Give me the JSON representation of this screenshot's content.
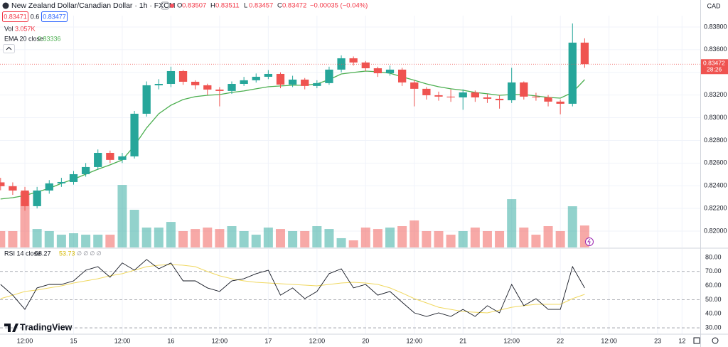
{
  "header": {
    "symbol": "New Zealand Dollar/Canadian Dollar · 1h · FXCM",
    "ohlc": [
      {
        "label": "O",
        "value": "0.83507"
      },
      {
        "label": "H",
        "value": "0.83511"
      },
      {
        "label": "L",
        "value": "0.83457"
      },
      {
        "label": "C",
        "value": "0.83472"
      }
    ],
    "change": "−0.00035 (−0.04%)",
    "sell": "0.83471",
    "spread": "0.6",
    "buy": "0.83477",
    "volume_name": "Vol",
    "volume_label": "3.057K",
    "rsi_extra": "∅ ∅ ∅ ∅",
    "currency": "CAD",
    "countdown": "28:26",
    "logo": "TradingView"
  },
  "chart_data": [
    {
      "type": "candlestick",
      "x": [
        0,
        3,
        6,
        9,
        12,
        15,
        18,
        21,
        24,
        27,
        30,
        33,
        36,
        39,
        42,
        45,
        48,
        51,
        54,
        57,
        60,
        63,
        66,
        69,
        72,
        75,
        78,
        81,
        84,
        87,
        90,
        93,
        96,
        99,
        102,
        105,
        108,
        111,
        114,
        117,
        120,
        123,
        126,
        129,
        132,
        135,
        138,
        141,
        144
      ],
      "open": [
        0.8243,
        0.82396,
        0.82358,
        0.8222,
        0.82358,
        0.82421,
        0.82433,
        0.82502,
        0.82565,
        0.8269,
        0.82628,
        0.82659,
        0.83035,
        0.83286,
        0.83298,
        0.83411,
        0.83317,
        0.83286,
        0.83248,
        0.83236,
        0.83298,
        0.8333,
        0.83361,
        0.83386,
        0.83292,
        0.83336,
        0.8328,
        0.83305,
        0.83424,
        0.83524,
        0.83487,
        0.83436,
        0.83392,
        0.83424,
        0.83311,
        0.83255,
        0.83198,
        0.83186,
        0.83179,
        0.83223,
        0.83179,
        0.83167,
        0.83154,
        0.83311,
        0.83186,
        0.83179,
        0.83142,
        0.83123,
        0.83662
      ],
      "high": [
        0.8247,
        0.8243,
        0.8239,
        0.8239,
        0.8245,
        0.8247,
        0.8253,
        0.826,
        0.8272,
        0.8271,
        0.8269,
        0.8306,
        0.8332,
        0.8334,
        0.8345,
        0.8342,
        0.8333,
        0.833,
        0.8327,
        0.8332,
        0.8336,
        0.8339,
        0.8342,
        0.834,
        0.8337,
        0.8335,
        0.8333,
        0.8345,
        0.8355,
        0.8354,
        0.835,
        0.8345,
        0.8346,
        0.8344,
        0.8333,
        0.8327,
        0.8323,
        0.8325,
        0.8325,
        0.8324,
        0.8321,
        0.832,
        0.8344,
        0.8332,
        0.8322,
        0.832,
        0.8316,
        0.83831,
        0.837
      ],
      "low": [
        0.8236,
        0.8232,
        0.8218,
        0.822,
        0.8233,
        0.8239,
        0.8241,
        0.8248,
        0.8254,
        0.826,
        0.826,
        0.8264,
        0.8301,
        0.8325,
        0.8327,
        0.8329,
        0.8325,
        0.832,
        0.831,
        0.8321,
        0.8328,
        0.8331,
        0.8334,
        0.8326,
        0.8327,
        0.8325,
        0.8326,
        0.8329,
        0.834,
        0.8346,
        0.8341,
        0.8336,
        0.8337,
        0.8328,
        0.831,
        0.8316,
        0.8315,
        0.8314,
        0.8307,
        0.8314,
        0.8313,
        0.8308,
        0.8313,
        0.8316,
        0.8315,
        0.831,
        0.8303,
        0.831,
        0.8344
      ],
      "close": [
        0.82396,
        0.82358,
        0.8222,
        0.82358,
        0.82421,
        0.82433,
        0.82502,
        0.82565,
        0.8269,
        0.82628,
        0.82659,
        0.83035,
        0.83286,
        0.83298,
        0.83411,
        0.83317,
        0.83286,
        0.83248,
        0.83236,
        0.83298,
        0.8333,
        0.83361,
        0.83386,
        0.83292,
        0.83336,
        0.8328,
        0.83305,
        0.83424,
        0.83524,
        0.83487,
        0.83436,
        0.83392,
        0.83424,
        0.83311,
        0.83255,
        0.83198,
        0.83186,
        0.83179,
        0.83223,
        0.83179,
        0.83167,
        0.83154,
        0.83311,
        0.83186,
        0.83179,
        0.83142,
        0.83123,
        0.83662,
        0.83472
      ],
      "up_color": "#26a69a",
      "down_color": "#ef5350",
      "ema": {
        "name": "EMA 20 close",
        "color": "#4caf50",
        "values": [
          0.82283,
          0.82295,
          0.82314,
          0.82345,
          0.82377,
          0.82421,
          0.82458,
          0.82502,
          0.82546,
          0.82584,
          0.82628,
          0.82753,
          0.8291,
          0.83035,
          0.8311,
          0.8316,
          0.83186,
          0.83198,
          0.83204,
          0.83223,
          0.83236,
          0.83255,
          0.83273,
          0.8328,
          0.83286,
          0.83286,
          0.83298,
          0.83336,
          0.83386,
          0.83399,
          0.83411,
          0.83405,
          0.83392,
          0.83361,
          0.8333,
          0.83298,
          0.83273,
          0.83255,
          0.83242,
          0.83223,
          0.83211,
          0.83198,
          0.83204,
          0.83204,
          0.83192,
          0.83179,
          0.83173,
          0.83223,
          0.83336
        ]
      },
      "volume": {
        "values": [
          2.28,
          2.28,
          7.72,
          2.57,
          2.28,
          1.78,
          1.98,
          1.78,
          1.78,
          1.78,
          8.71,
          5.25,
          2.77,
          2.77,
          3.56,
          2.28,
          2.57,
          2.77,
          2.57,
          2.97,
          2.28,
          1.78,
          2.77,
          2.57,
          2.28,
          2.28,
          2.97,
          2.57,
          1.29,
          0.99,
          2.77,
          2.57,
          2.77,
          2.97,
          3.76,
          2.28,
          2.28,
          1.78,
          2.28,
          2.77,
          2.28,
          2.28,
          6.73,
          2.77,
          1.78,
          2.97,
          2.28,
          5.74,
          3.057
        ],
        "vlim": [
          0,
          32
        ]
      },
      "xlim": [
        -0.14,
        172.5
      ],
      "xticks": [
        {
          "value": 6,
          "label": "12:00"
        },
        {
          "value": 18,
          "label": "15"
        },
        {
          "value": 30,
          "label": "12:00"
        },
        {
          "value": 42,
          "label": "16"
        },
        {
          "value": 54,
          "label": "12:00"
        },
        {
          "value": 66,
          "label": "17"
        },
        {
          "value": 78,
          "label": "12:00"
        },
        {
          "value": 90,
          "label": "20"
        },
        {
          "value": 102,
          "label": "12:00"
        },
        {
          "value": 114,
          "label": "21"
        },
        {
          "value": 126,
          "label": "12:00"
        },
        {
          "value": 138,
          "label": "22"
        },
        {
          "value": 150,
          "label": "12:00"
        },
        {
          "value": 162,
          "label": "23"
        },
        {
          "value": 168,
          "label": "12"
        }
      ],
      "ylim": [
        0.81856,
        0.839
      ],
      "yticks": [
        {
          "value": 0.82,
          "label": "0.82000"
        },
        {
          "value": 0.822,
          "label": "0.82200"
        },
        {
          "value": 0.824,
          "label": "0.82400"
        },
        {
          "value": 0.826,
          "label": "0.82600"
        },
        {
          "value": 0.828,
          "label": "0.82800"
        },
        {
          "value": 0.83,
          "label": "0.83000"
        },
        {
          "value": 0.832,
          "label": "0.83200"
        },
        {
          "value": 0.834,
          "label": "0.83400"
        },
        {
          "value": 0.836,
          "label": "0.83600"
        },
        {
          "value": 0.838,
          "label": "0.83800"
        }
      ],
      "grid": true
    },
    {
      "type": "line",
      "x": [
        0,
        3,
        6,
        9,
        12,
        15,
        18,
        21,
        24,
        27,
        30,
        33,
        36,
        39,
        42,
        45,
        48,
        51,
        54,
        57,
        60,
        63,
        66,
        69,
        72,
        75,
        78,
        81,
        84,
        87,
        90,
        93,
        96,
        99,
        102,
        105,
        108,
        111,
        114,
        117,
        120,
        123,
        126,
        129,
        132,
        135,
        138,
        141,
        144
      ],
      "series": [
        {
          "name": "RSI 14 close",
          "color": "#131722",
          "values": [
            60.8,
            53.2,
            43.1,
            58.3,
            60.8,
            60.8,
            63.3,
            70.9,
            73.4,
            65.9,
            76.0,
            70.9,
            78.5,
            71.9,
            76.0,
            63.3,
            63.3,
            58.3,
            55.8,
            63.3,
            64.9,
            68.4,
            70.9,
            53.2,
            58.3,
            50.7,
            55.8,
            68.4,
            71.9,
            58.3,
            60.8,
            53.2,
            55.8,
            48.2,
            40.6,
            38.1,
            40.6,
            38.1,
            43.1,
            38.1,
            45.7,
            40.6,
            60.8,
            45.7,
            50.7,
            43.1,
            43.1,
            73.4,
            58.27
          ]
        },
        {
          "color": "#f0d860",
          "values": [
            50.7,
            53.2,
            55.8,
            56.8,
            58.3,
            59.8,
            61.8,
            63.3,
            64.8,
            66.9,
            68.4,
            70.9,
            73.4,
            74.4,
            74.9,
            74.4,
            73.4,
            69.9,
            66.9,
            64.8,
            63.3,
            62.3,
            61.8,
            61.3,
            60.8,
            60.3,
            59.8,
            60.8,
            61.8,
            62.3,
            61.8,
            60.8,
            58.3,
            54.7,
            50.7,
            47.7,
            44.6,
            43.1,
            41.6,
            41.1,
            40.6,
            42.6,
            44.6,
            45.7,
            46.7,
            46.7,
            46.7,
            50.7,
            53.73
          ]
        }
      ],
      "levels": [
        70,
        50,
        30
      ],
      "xlim": [
        -0.14,
        172.5
      ],
      "ylim": [
        25.5,
        86
      ],
      "yticks": [
        {
          "value": 30,
          "label": "30.00"
        },
        {
          "value": 40,
          "label": "40.00"
        },
        {
          "value": 50,
          "label": "50.00"
        },
        {
          "value": 60,
          "label": "60.00"
        },
        {
          "value": 70,
          "label": "70.00"
        },
        {
          "value": 80,
          "label": "80.00"
        }
      ],
      "grid": true
    }
  ]
}
